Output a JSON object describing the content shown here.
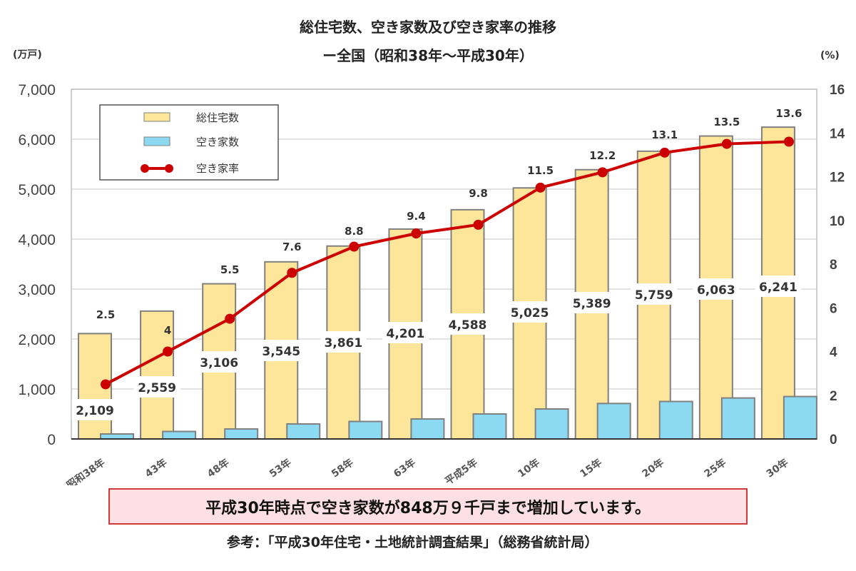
{
  "chart_data": {
    "type": "bar",
    "title": "総住宅数、空き家数及び空き家率の推移",
    "subtitle": "ー全国（昭和38年～平成30年）",
    "ylabel_left": "(万戸)",
    "ylabel_right": "(%)",
    "categories": [
      "昭和38年",
      "43年",
      "48年",
      "53年",
      "58年",
      "63年",
      "平成5年",
      "10年",
      "15年",
      "20年",
      "25年",
      "30年"
    ],
    "ylim_left": [
      0,
      7000
    ],
    "yticks_left": [
      "0",
      "1,000",
      "2,000",
      "3,000",
      "4,000",
      "5,000",
      "6,000",
      "7,000"
    ],
    "ylim_right": [
      0,
      16
    ],
    "yticks_right": [
      "0",
      "2",
      "4",
      "6",
      "8",
      "10",
      "12",
      "14",
      "16"
    ],
    "grid": true,
    "legend_position": "top-left",
    "series": [
      {
        "name": "総住宅数",
        "type": "bar",
        "axis": "left",
        "color": "#fde59a",
        "values": [
          2109,
          2559,
          3106,
          3545,
          3861,
          4201,
          4588,
          5025,
          5389,
          5759,
          6063,
          6241
        ],
        "labels": [
          "2,109",
          "2,559",
          "3,106",
          "3,545",
          "3,861",
          "4,201",
          "4,588",
          "5,025",
          "5,389",
          "5,759",
          "6,063",
          "6,241"
        ]
      },
      {
        "name": "空き家数",
        "type": "bar",
        "axis": "left",
        "color": "#8cdaf2",
        "values": [
          100,
          150,
          200,
          300,
          350,
          400,
          500,
          600,
          710,
          750,
          820,
          849
        ]
      },
      {
        "name": "空き家率",
        "type": "line",
        "axis": "right",
        "color": "#cc0000",
        "values": [
          2.5,
          4.0,
          5.5,
          7.6,
          8.8,
          9.4,
          9.8,
          11.5,
          12.2,
          13.1,
          13.5,
          13.6
        ],
        "labels": [
          "2.5",
          "4",
          "5.5",
          "7.6",
          "8.8",
          "9.4",
          "9.8",
          "11.5",
          "12.2",
          "13.1",
          "13.5",
          "13.6"
        ]
      }
    ]
  },
  "note": "平成30年時点で空き家数が848万９千戸まで増加しています。",
  "source": "参考：「平成30年住宅・土地統計調査結果」（総務省統計局）"
}
